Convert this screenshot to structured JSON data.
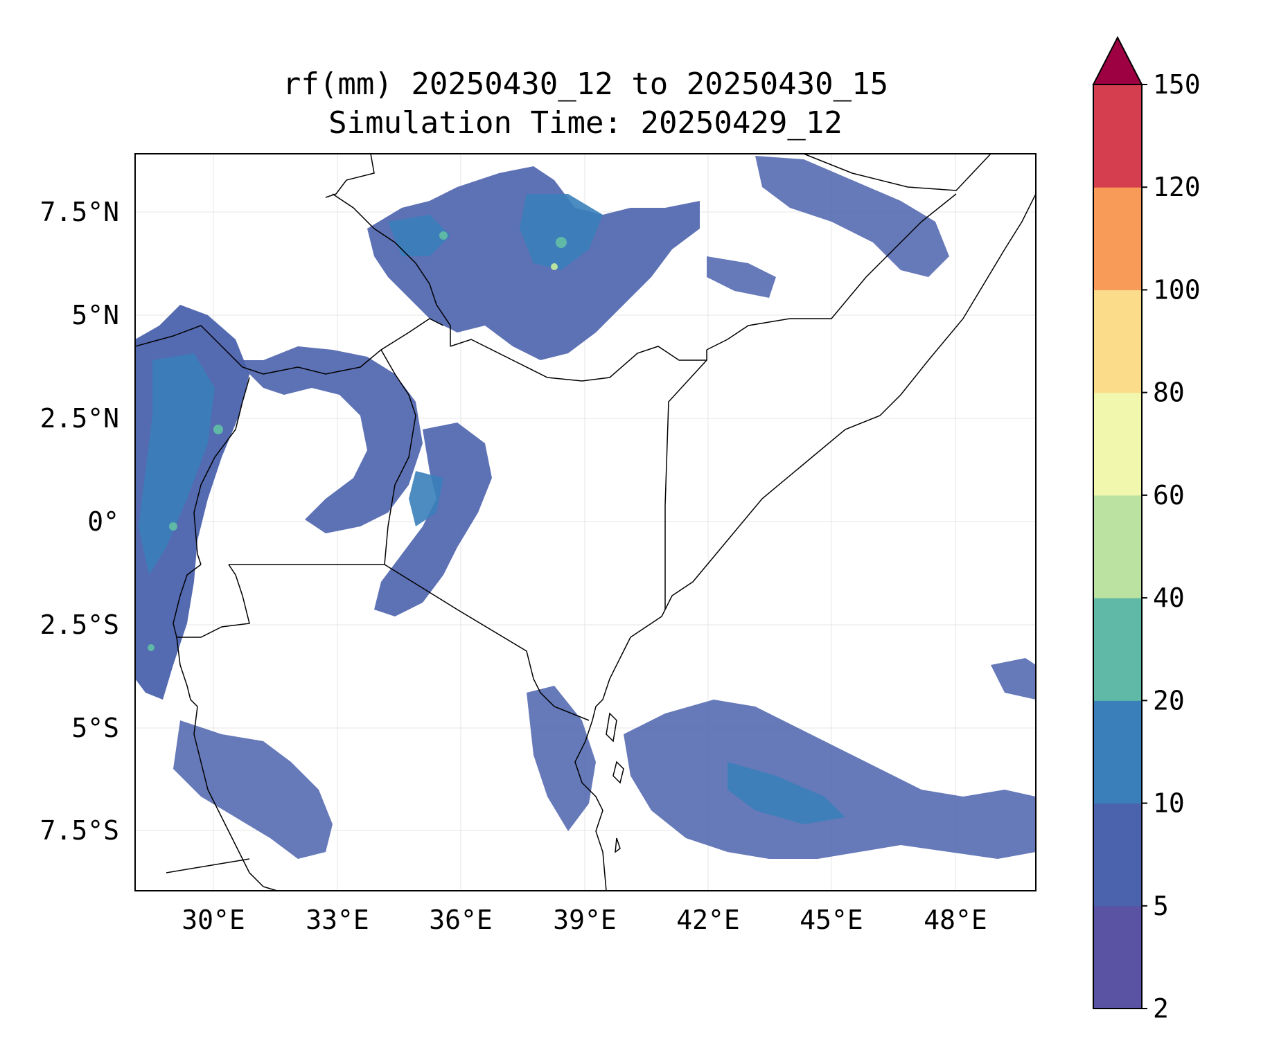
{
  "title": {
    "line1": "rf(mm) 20250430_12 to 20250430_15",
    "line2": "Simulation Time: 20250429_12"
  },
  "map": {
    "region": "East Africa",
    "x_ticks": [
      "30°E",
      "33°E",
      "36°E",
      "39°E",
      "42°E",
      "45°E",
      "48°E"
    ],
    "y_ticks": [
      "7.5°N",
      "5°N",
      "2.5°N",
      "0°",
      "2.5°S",
      "5°S",
      "7.5°S"
    ],
    "gridlines": true,
    "outline_color": "#000000"
  },
  "colorbar": {
    "levels": [
      "2",
      "5",
      "10",
      "20",
      "40",
      "60",
      "80",
      "100",
      "120",
      "150"
    ],
    "colors": [
      "#5a53a3",
      "#4b62ad",
      "#3a7fba",
      "#5fb9a6",
      "#bbe2a0",
      "#f1f7ad",
      "#fbdc8a",
      "#f89b58",
      "#d53e4f"
    ],
    "extend_color": "#9e0142",
    "extend": "max"
  }
}
